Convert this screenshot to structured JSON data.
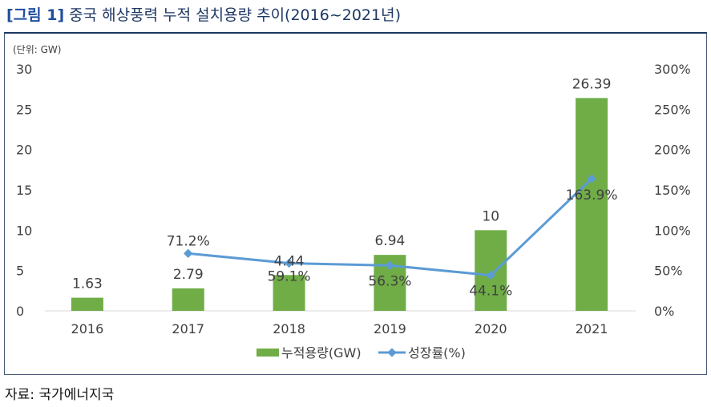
{
  "figure": {
    "tag": "[그림 1]",
    "title": "중국 해상풍력 누적 설치용량 추이(2016~2021년)",
    "source": "자료: 국가에너지국"
  },
  "colors": {
    "title": "#1f3864",
    "bar": "#70ad47",
    "line": "#5b9bd5",
    "text": "#404040"
  },
  "chart_data": {
    "type": "bar",
    "unit_label": "(단위: GW)",
    "categories": [
      "2016",
      "2017",
      "2018",
      "2019",
      "2020",
      "2021"
    ],
    "y_left": {
      "ticks": [
        "30",
        "25",
        "20",
        "15",
        "10",
        "5",
        "0"
      ],
      "range": [
        0,
        30
      ]
    },
    "y_right": {
      "ticks": [
        "300%",
        "250%",
        "200%",
        "150%",
        "100%",
        "50%",
        "0%"
      ],
      "range": [
        0,
        300
      ]
    },
    "grid": false,
    "legend_position": "bottom",
    "series": [
      {
        "name": "누적용량(GW)",
        "type": "bar",
        "axis": "left",
        "values": [
          1.63,
          2.79,
          4.44,
          6.94,
          10,
          26.39
        ],
        "labels": [
          "1.63",
          "2.79",
          "4.44",
          "6.94",
          "10",
          "26.39"
        ]
      },
      {
        "name": "성장률(%)",
        "type": "line",
        "axis": "right",
        "values": [
          null,
          71.2,
          59.1,
          56.3,
          44.1,
          163.9
        ],
        "labels": [
          "",
          "71.2%",
          "59.1%",
          "56.3%",
          "44.1%",
          "163.9%"
        ]
      }
    ]
  }
}
